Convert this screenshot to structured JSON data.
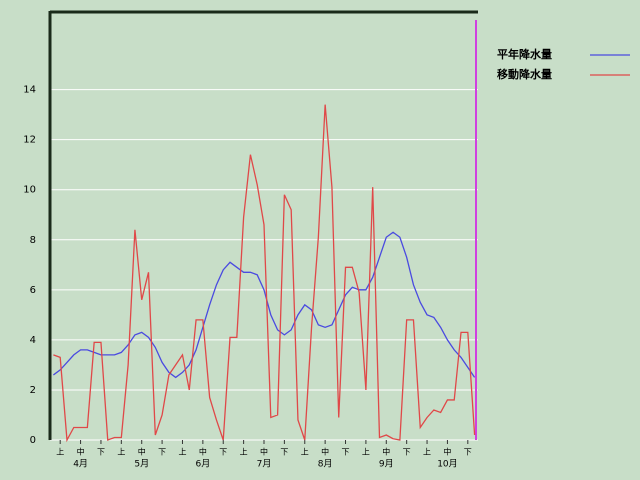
{
  "chart_data": {
    "type": "line",
    "categories": [
      null,
      "上",
      null,
      null,
      "中",
      null,
      null,
      "下",
      null,
      null,
      "上",
      null,
      null,
      "中",
      null,
      null,
      "下",
      null,
      null,
      "上",
      null,
      null,
      "中",
      null,
      null,
      "下",
      null,
      null,
      "上",
      null,
      null,
      "中",
      null,
      null,
      "下",
      null,
      null,
      "上",
      null,
      null,
      "中",
      null,
      null,
      "下",
      null,
      null,
      "上",
      null,
      null,
      "中",
      null,
      null,
      "下",
      null,
      null,
      "上",
      null,
      null,
      "中",
      null,
      null,
      "下",
      null
    ],
    "months": [
      "4月",
      "5月",
      "6月",
      "7月",
      "8月",
      "9月",
      "10月"
    ],
    "series": [
      {
        "name": "平年降水量",
        "color": "#4a4ae0",
        "values": [
          2.6,
          2.8,
          3.1,
          3.4,
          3.6,
          3.6,
          3.5,
          3.4,
          3.4,
          3.4,
          3.5,
          3.8,
          4.2,
          4.3,
          4.1,
          3.7,
          3.1,
          2.7,
          2.5,
          2.7,
          3.0,
          3.6,
          4.5,
          5.4,
          6.2,
          6.8,
          7.1,
          6.9,
          6.7,
          6.7,
          6.6,
          6.0,
          5.0,
          4.4,
          4.2,
          4.4,
          5.0,
          5.4,
          5.2,
          4.6,
          4.5,
          4.6,
          5.2,
          5.8,
          6.1,
          6.0,
          6.0,
          6.5,
          7.3,
          8.1,
          8.3,
          8.1,
          7.3,
          6.2,
          5.5,
          5.0,
          4.9,
          4.5,
          4.0,
          3.6,
          3.3,
          2.9,
          2.5
        ]
      },
      {
        "name": "移動降水量",
        "color": "#e04848",
        "values": [
          3.4,
          3.3,
          0,
          0.5,
          0.5,
          0.5,
          3.9,
          3.9,
          0,
          0.1,
          0.1,
          3.0,
          8.4,
          5.6,
          6.7,
          0.2,
          1.0,
          2.6,
          3.0,
          3.4,
          2.0,
          4.8,
          4.8,
          1.7,
          0.8,
          0,
          4.1,
          4.1,
          8.9,
          11.4,
          10.2,
          8.6,
          0.9,
          1.0,
          9.8,
          9.2,
          0.8,
          0,
          4.5,
          8.1,
          13.4,
          10.1,
          0.9,
          6.9,
          6.9,
          5.9,
          2.0,
          10.1,
          0.1,
          0.2,
          0.05,
          0,
          4.8,
          4.8,
          0.5,
          0.9,
          1.2,
          1.1,
          1.6,
          1.6,
          4.3,
          4.3,
          0.2
        ]
      }
    ],
    "ylim": [
      0,
      17.1
    ],
    "yticks": [
      0,
      2,
      4,
      6,
      8,
      10,
      12,
      14
    ],
    "grid": true
  }
}
